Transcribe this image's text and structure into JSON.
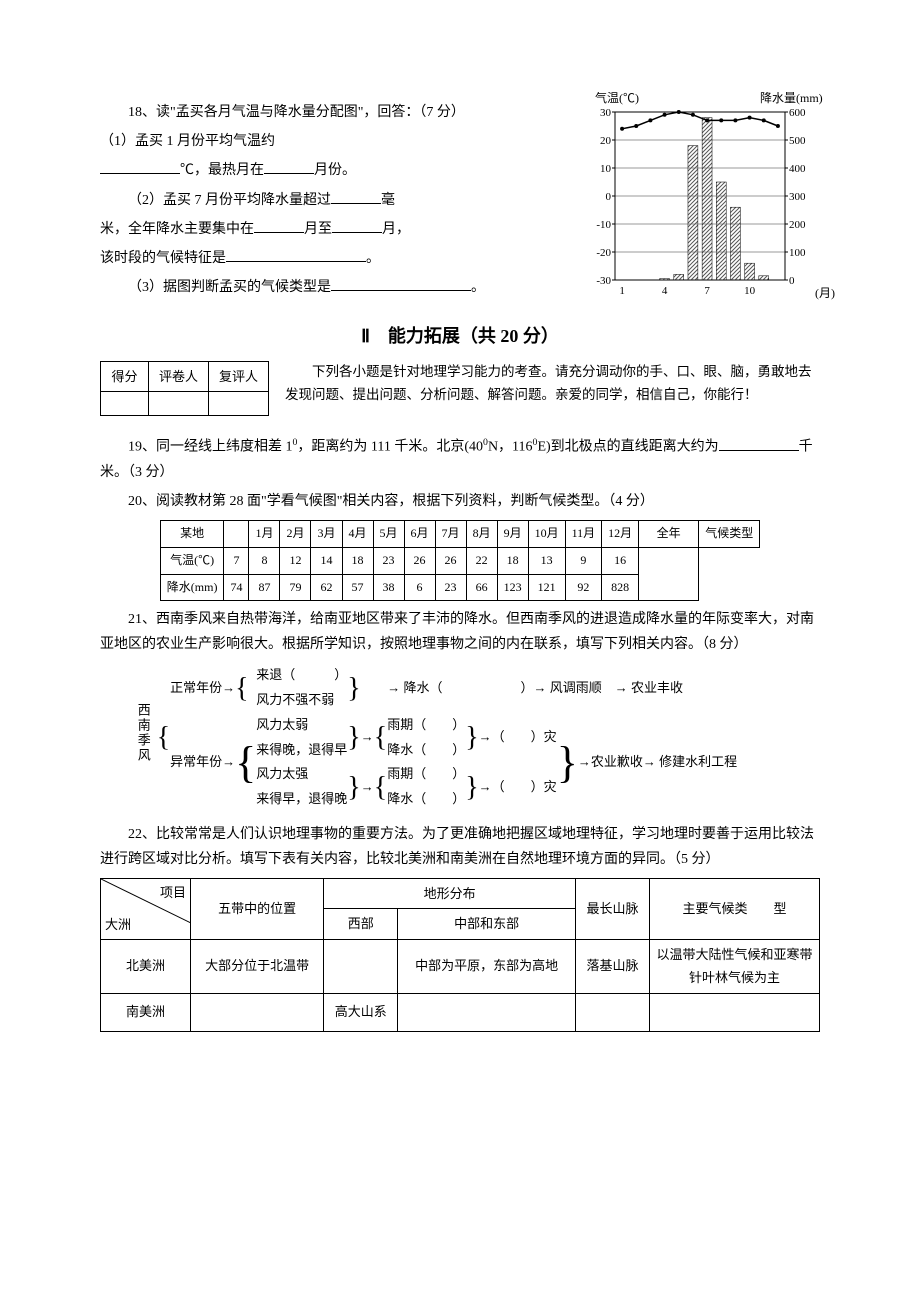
{
  "q18": {
    "prompt": "18、读\"孟买各月气温与降水量分配图\"，回答：（7 分）",
    "p1_a": "（1）孟买 1 月份平均气温约",
    "p1_b": "℃，最热月在",
    "p1_c": "月份。",
    "p2_a": "（2）孟买 7 月份平均降水量超过",
    "p2_b": "毫",
    "p2_c": "米，全年降水主要集中在",
    "p2_d": "月至",
    "p2_e": "月，",
    "p3_a": "该时段的气候特征是",
    "p3_b": "。",
    "p4_a": "（3）据图判断孟买的气候类型是",
    "p4_b": "。",
    "chart": {
      "temp_label": "气温(℃)",
      "precip_label": "降水量(mm)",
      "month_label": "(月)",
      "y_left_ticks": [
        30,
        20,
        10,
        0,
        -10,
        -20,
        -30
      ],
      "y_right_ticks": [
        600,
        500,
        400,
        300,
        200,
        100,
        0
      ],
      "x_ticks": [
        1,
        4,
        7,
        10
      ],
      "bar_values": [
        0,
        0,
        0,
        5,
        20,
        480,
        580,
        350,
        260,
        60,
        15,
        0
      ],
      "temp_values": [
        24,
        25,
        27,
        29,
        30,
        29,
        27,
        27,
        27,
        28,
        27,
        25
      ],
      "bar_color": "#888888",
      "grid_color": "#000000",
      "plot_bg": "#ffffff"
    }
  },
  "section2": {
    "title": "Ⅱ　能力拓展（共 20 分）",
    "score_headers": [
      "得分",
      "评卷人",
      "复评人"
    ],
    "intro": "下列各小题是针对地理学习能力的考查。请充分调动你的手、口、眼、脑，勇敢地去发现问题、提出问题、分析问题、解答问题。亲爱的同学，相信自己，你能行！"
  },
  "q19": {
    "text_a": "19、同一经线上纬度相差 1",
    "text_b": "，距离约为 111 千米。北京(40",
    "text_c": "N，116",
    "text_d": "E)到北极点的直线距离大约为",
    "text_e": "千米。（3 分）",
    "sup0": "0"
  },
  "q20": {
    "prompt": "20、阅读教材第 28 面\"学看气候图\"相关内容，根据下列资料，判断气候类型。（4 分）",
    "row_label": "某地",
    "temp_label": "气温(℃)",
    "precip_label": "降水(mm)",
    "months": [
      "1月",
      "2月",
      "3月",
      "4月",
      "5月",
      "6月",
      "7月",
      "8月",
      "9月",
      "10月",
      "11月",
      "12月"
    ],
    "year_label": "全年",
    "type_label": "气候类型",
    "temps": [
      7,
      8,
      12,
      14,
      18,
      23,
      26,
      26,
      22,
      18,
      13,
      9
    ],
    "temp_year": 16,
    "precips": [
      74,
      87,
      79,
      62,
      57,
      38,
      6,
      23,
      66,
      123,
      121,
      92
    ],
    "precip_year": 828
  },
  "q21": {
    "prompt": "21、西南季风来自热带海洋，给南亚地区带来了丰沛的降水。但西南季风的进退造成降水量的年际变率大，对南亚地区的农业生产影响很大。根据所学知识，按照地理事物之间的内在联系，填写下列相关内容。（8 分）",
    "root": "西南季风",
    "normal": "正常年份→",
    "normal_a": "来退（　　　）",
    "normal_b": "风力不强不弱",
    "arrow_precip": "→ 降水（　　　　　　）→ 风调雨顺　→ 农业丰收",
    "abnormal": "异常年份→",
    "ab_a1": "风力太弱",
    "ab_a2": "来得晚，退得早",
    "ab_r1a": "雨期（　　）",
    "ab_r1b": "降水（　　）",
    "ab_d1": "→（　　）灾",
    "ab_b1": "风力太强",
    "ab_b2": "来得早，退得晚",
    "ab_r2a": "雨期（　　）",
    "ab_r2b": "降水（　　）",
    "ab_d2": "→（　　）灾",
    "ab_end": "→农业歉收→ 修建水利工程"
  },
  "q22": {
    "prompt": "22、比较常常是人们认识地理事物的重要方法。为了更准确地把握区域地理特征，学习地理时要善于运用比较法进行跨区域对比分析。填写下表有关内容，比较北美洲和南美洲在自然地理环境方面的异同。（5 分）",
    "headers": {
      "diag_top": "项目",
      "diag_bottom": "大洲",
      "col1": "五带中的位置",
      "col2": "地形分布",
      "col2a": "西部",
      "col2b": "中部和东部",
      "col3": "最长山脉",
      "col4": "主要气候类　　型"
    },
    "rows": [
      {
        "name": "北美洲",
        "zone": "大部分位于北温带",
        "west": "",
        "ce": "中部为平原，东部为高地",
        "mtn": "落基山脉",
        "climate": "以温带大陆性气候和亚寒带针叶林气候为主"
      },
      {
        "name": "南美洲",
        "zone": "",
        "west": "高大山系",
        "ce": "",
        "mtn": "",
        "climate": ""
      }
    ]
  }
}
